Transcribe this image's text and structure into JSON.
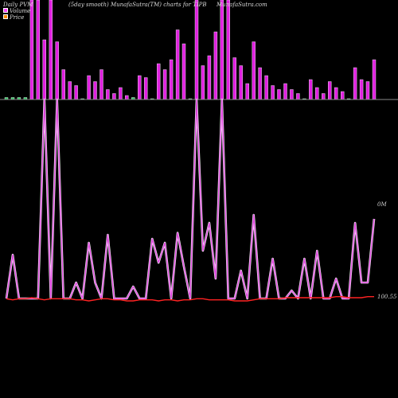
{
  "header": {
    "left": "Daily PVM",
    "center": "(5day smooth) MunafaSutra(TM) charts for TIPB",
    "right": "MunafaSutra.com"
  },
  "legend": [
    {
      "label": "Volume",
      "color": "#ff44ff"
    },
    {
      "label": "Price",
      "color": "#ff8800"
    }
  ],
  "chart_data": {
    "type": "line",
    "background": "#000000",
    "volume": {
      "name": "Volume",
      "color": "#e020e0",
      "baseline_color": "#8a8a8a",
      "max": 100,
      "values": [
        2,
        2,
        2,
        2,
        100,
        100,
        60,
        100,
        58,
        30,
        18,
        14,
        0,
        24,
        18,
        30,
        10,
        6,
        12,
        4,
        2,
        24,
        22,
        0,
        36,
        30,
        40,
        70,
        56,
        0,
        100,
        34,
        44,
        68,
        100,
        100,
        42,
        34,
        16,
        58,
        32,
        24,
        14,
        10,
        16,
        10,
        6,
        0,
        20,
        12,
        6,
        18,
        12,
        8,
        0,
        32,
        20,
        18,
        40
      ]
    },
    "volume_ma": {
      "name": "Volume 5-day smooth",
      "color": "#c8c8c8",
      "values": [
        2,
        2,
        2,
        2,
        2,
        2,
        2,
        3,
        4,
        4,
        4,
        3,
        3,
        3,
        3,
        3,
        3,
        3,
        3,
        3,
        3,
        3,
        3,
        3,
        3,
        3,
        3,
        3,
        3,
        3,
        3,
        3,
        3,
        3,
        3,
        3,
        3,
        3,
        3,
        3,
        3,
        3,
        3,
        3,
        3,
        3,
        3,
        3,
        3,
        3,
        3,
        3,
        3,
        3,
        3,
        3,
        3,
        3,
        3
      ]
    },
    "pvm": {
      "name": "PVM",
      "color": "#dd44dd",
      "max": 100,
      "min": 0,
      "values": [
        0,
        22,
        0,
        0,
        0,
        0,
        100,
        0,
        100,
        0,
        0,
        8,
        0,
        28,
        8,
        0,
        32,
        0,
        0,
        0,
        6,
        0,
        0,
        30,
        18,
        28,
        0,
        33,
        16,
        0,
        100,
        24,
        38,
        10,
        100,
        0,
        0,
        14,
        0,
        42,
        0,
        0,
        20,
        0,
        0,
        4,
        0,
        20,
        0,
        24,
        0,
        0,
        10,
        0,
        0,
        38,
        8,
        8,
        40
      ]
    },
    "price": {
      "name": "Price",
      "color": "#ff2222",
      "values": [
        100.55,
        100.54,
        100.55,
        100.55,
        100.56,
        100.55,
        100.54,
        100.55,
        100.55,
        100.55,
        100.55,
        100.54,
        100.54,
        100.53,
        100.54,
        100.55,
        100.55,
        100.54,
        100.54,
        100.53,
        100.53,
        100.54,
        100.54,
        100.54,
        100.53,
        100.54,
        100.54,
        100.53,
        100.54,
        100.54,
        100.55,
        100.55,
        100.54,
        100.54,
        100.54,
        100.54,
        100.53,
        100.53,
        100.53,
        100.54,
        100.55,
        100.55,
        100.55,
        100.55,
        100.56,
        100.56,
        100.56,
        100.56,
        100.56,
        100.56,
        100.56,
        100.56,
        100.57,
        100.57,
        100.56,
        100.56,
        100.56,
        100.57,
        100.57
      ],
      "min": 100.5,
      "max": 100.65
    },
    "labels": {
      "pvm_last": "0M",
      "price_last": "100.55"
    }
  }
}
